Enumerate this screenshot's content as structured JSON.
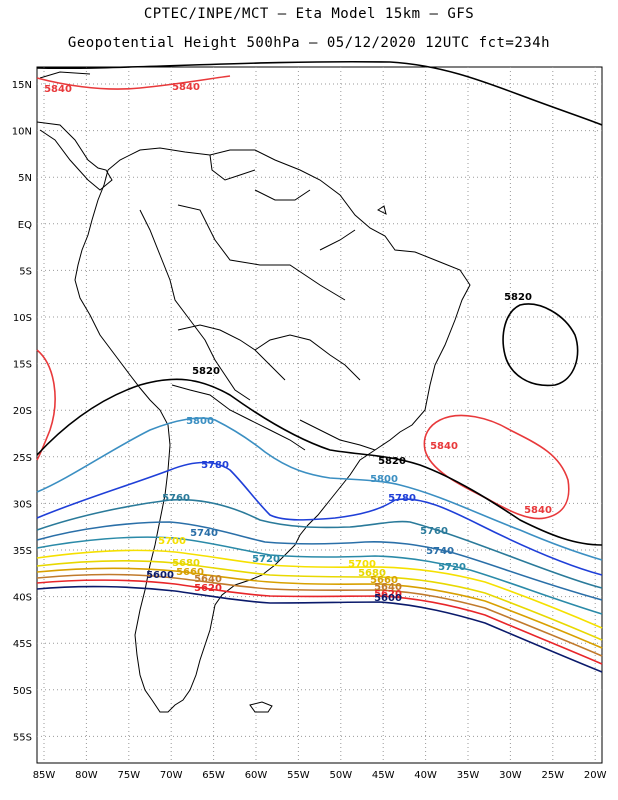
{
  "title_line1": "CPTEC/INPE/MCT –  Eta Model 15km – GFS",
  "title_line2": "Geopotential Height 500hPa – 05/12/2020 12UTC fct=234h",
  "lat_labels": [
    "15N",
    "10N",
    "5N",
    "EQ",
    "5S",
    "10S",
    "15S",
    "20S",
    "25S",
    "30S",
    "35S",
    "40S",
    "45S",
    "50S",
    "55S"
  ],
  "lon_labels": [
    "85W",
    "80W",
    "75W",
    "70W",
    "65W",
    "60W",
    "55W",
    "50W",
    "45W",
    "40W",
    "35W",
    "30W",
    "25W",
    "20W"
  ],
  "contour_colors": {
    "5600": "#0a1a6b",
    "5620": "#e8262a",
    "5640": "#c07a2c",
    "5660": "#d8a000",
    "5680": "#e8d800",
    "5700": "#f5e000",
    "5720": "#2a8aa8",
    "5740": "#2a6fa8",
    "5760": "#2a7a9a",
    "5780": "#1f3fd8",
    "5800": "#3b8fc2",
    "5820": "#000000",
    "5840": "#e8393b"
  },
  "contour_labels": [
    {
      "text": "5840",
      "level": "5840"
    },
    {
      "text": "5840",
      "level": "5840"
    },
    {
      "text": "5820",
      "level": "5820"
    },
    {
      "text": "5820",
      "level": "5820"
    },
    {
      "text": "5820",
      "level": "5820"
    },
    {
      "text": "5840",
      "level": "5840"
    },
    {
      "text": "5840",
      "level": "5840"
    },
    {
      "text": "5800",
      "level": "5800"
    },
    {
      "text": "5780",
      "level": "5780"
    },
    {
      "text": "5800",
      "level": "5800"
    },
    {
      "text": "5780",
      "level": "5780"
    },
    {
      "text": "5760",
      "level": "5760"
    },
    {
      "text": "5740",
      "level": "5740"
    },
    {
      "text": "5760",
      "level": "5760"
    },
    {
      "text": "5740",
      "level": "5740"
    },
    {
      "text": "5700",
      "level": "5700"
    },
    {
      "text": "5720",
      "level": "5720"
    },
    {
      "text": "5720",
      "level": "5720"
    },
    {
      "text": "5680",
      "level": "5680"
    },
    {
      "text": "5700",
      "level": "5700"
    },
    {
      "text": "5660",
      "level": "5660"
    },
    {
      "text": "5680",
      "level": "5680"
    },
    {
      "text": "5660",
      "level": "5660"
    },
    {
      "text": "5640",
      "level": "5640"
    },
    {
      "text": "5620",
      "level": "5620"
    },
    {
      "text": "5600",
      "level": "5600"
    },
    {
      "text": "5640",
      "level": "5640"
    },
    {
      "text": "5620",
      "level": "5620"
    },
    {
      "text": "5600",
      "level": "5600"
    }
  ]
}
